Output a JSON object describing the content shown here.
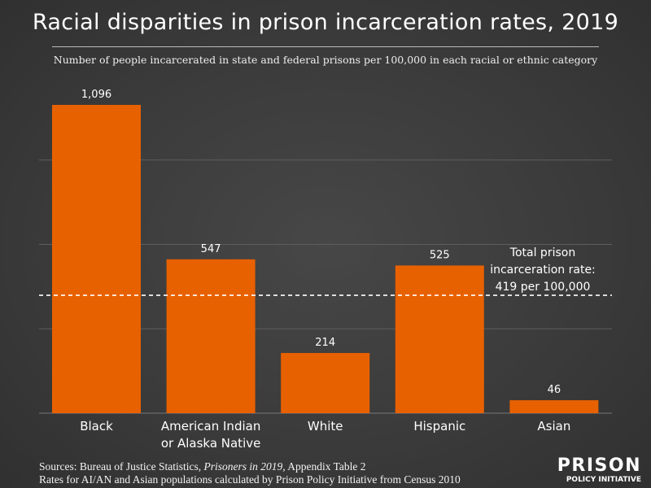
{
  "chart_data": {
    "type": "bar",
    "title": "Racial disparities in prison incarceration rates, 2019",
    "subtitle": "Number of people incarcerated in state and federal prisons per 100,000 in each racial or ethnic category",
    "categories": [
      "Black",
      "American Indian\nor Alaska Native",
      "White",
      "Hispanic",
      "Asian"
    ],
    "values": [
      1096,
      547,
      214,
      525,
      46
    ],
    "data_labels": [
      "1,096",
      "547",
      "214",
      "525",
      "46"
    ],
    "ylim": [
      0,
      1200
    ],
    "gridlines": [
      300,
      600,
      900
    ],
    "grid": true,
    "bar_color": "#e86100",
    "reference_line": {
      "value": 419,
      "label_lines": [
        "Total prison",
        "incarceration rate:",
        "419 per 100,000"
      ],
      "style": "dashed"
    }
  },
  "footer": {
    "sources_prefix": "Sources: Bureau of Justice Statistics, ",
    "sources_italic": "Prisoners in 2019",
    "sources_suffix": ", Appendix Table 2",
    "note": "Rates for AI/AN and Asian populations calculated by Prison Policy Initiative from Census 2010"
  },
  "logo": {
    "line1": "PRISON",
    "line2": "POLICY INITIATIVE"
  }
}
